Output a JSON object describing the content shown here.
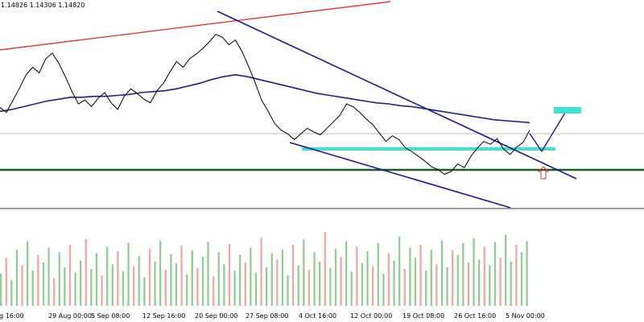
{
  "chart_data": {
    "type": "line",
    "ohlc_label": "1.14826 1.14306 1.14820",
    "x_ticks": [
      "ug 16:00",
      "29 Aug 00:00",
      "5 Sep 08:00",
      "12 Sep 16:00",
      "20 Sep 00:00",
      "27 Sep 08:00",
      "4 Oct 16:00",
      "12 Oct 00:00",
      "19 Oct 08:00",
      "26 Oct 16:00",
      "5 Nov 00:00"
    ],
    "price_series": [
      1.1454,
      1.1449,
      1.1462,
      1.1475,
      1.1489,
      1.1497,
      1.1491,
      1.1506,
      1.1512,
      1.1501,
      1.1487,
      1.1471,
      1.1458,
      1.1462,
      1.1455,
      1.1464,
      1.147,
      1.1459,
      1.1452,
      1.1466,
      1.1474,
      1.1469,
      1.1463,
      1.1459,
      1.1472,
      1.148,
      1.1492,
      1.1503,
      1.1497,
      1.1506,
      1.1511,
      1.1517,
      1.1524,
      1.1532,
      1.1529,
      1.1521,
      1.1526,
      1.1514,
      1.1498,
      1.1481,
      1.1462,
      1.145,
      1.1437,
      1.143,
      1.1426,
      1.142,
      1.1426,
      1.1432,
      1.1428,
      1.1425,
      1.1432,
      1.1439,
      1.1446,
      1.1458,
      1.1455,
      1.1449,
      1.1442,
      1.1436,
      1.1427,
      1.1418,
      1.1424,
      1.142,
      1.1411,
      1.1407,
      1.1402,
      1.1397,
      1.1391,
      1.1388,
      1.1383,
      1.1386,
      1.1394,
      1.139,
      1.1402,
      1.1411,
      1.1418,
      1.1415,
      1.1421,
      1.141,
      1.1404,
      1.1412,
      1.1417,
      1.143
    ],
    "ma_series": [
      1.145,
      1.1452,
      1.1455,
      1.1458,
      1.1461,
      1.1463,
      1.1465,
      1.1465,
      1.1466,
      1.1466,
      1.1467,
      1.1468,
      1.147,
      1.1471,
      1.1472,
      1.1474,
      1.1477,
      1.148,
      1.1484,
      1.1487,
      1.1489,
      1.1487,
      1.1484,
      1.1481,
      1.1478,
      1.1475,
      1.1472,
      1.1469,
      1.1467,
      1.1465,
      1.1463,
      1.1461,
      1.1459,
      1.1458,
      1.1456,
      1.1455,
      1.1453,
      1.1451,
      1.1449,
      1.1447,
      1.1445,
      1.1443,
      1.1441,
      1.144,
      1.1439,
      1.1438
    ],
    "volume_series": [
      35,
      52,
      28,
      61,
      44,
      70,
      38,
      55,
      47,
      63,
      30,
      58,
      42,
      66,
      36,
      49,
      72,
      40,
      57,
      33,
      64,
      45,
      59,
      37,
      68,
      43,
      54,
      31,
      62,
      48,
      71,
      39,
      56,
      46,
      65,
      34,
      60,
      41,
      53,
      69,
      32,
      58,
      45,
      67,
      38,
      55,
      47,
      63,
      36,
      74,
      42,
      57,
      50,
      61,
      33,
      66,
      44,
      72,
      39,
      58,
      48,
      80,
      41,
      62,
      53,
      70,
      37,
      64,
      46,
      59,
      43,
      68,
      35,
      57,
      49,
      75,
      40,
      63,
      52,
      66,
      38,
      61,
      45,
      71,
      42,
      60,
      55,
      68,
      47,
      73,
      50,
      64,
      44,
      69,
      52,
      77,
      48,
      66,
      58,
      70
    ],
    "volume_max": 100,
    "ylim": [
      1.135,
      1.156
    ],
    "levels": {
      "support_line": 1.1385,
      "resistance_zone": 1.1408,
      "gray_line": 1.1422
    },
    "colors": {
      "price": "#000000",
      "ma": "#1a237e",
      "channel": "#1a1a99",
      "support": "#1b5e20",
      "zone": "#40e0d0",
      "trend_red": "#e53935",
      "vol_green": "#8fcf8f",
      "vol_red": "#f4a6a6",
      "arrow": "#e53935",
      "target": "#40e0d0"
    }
  }
}
